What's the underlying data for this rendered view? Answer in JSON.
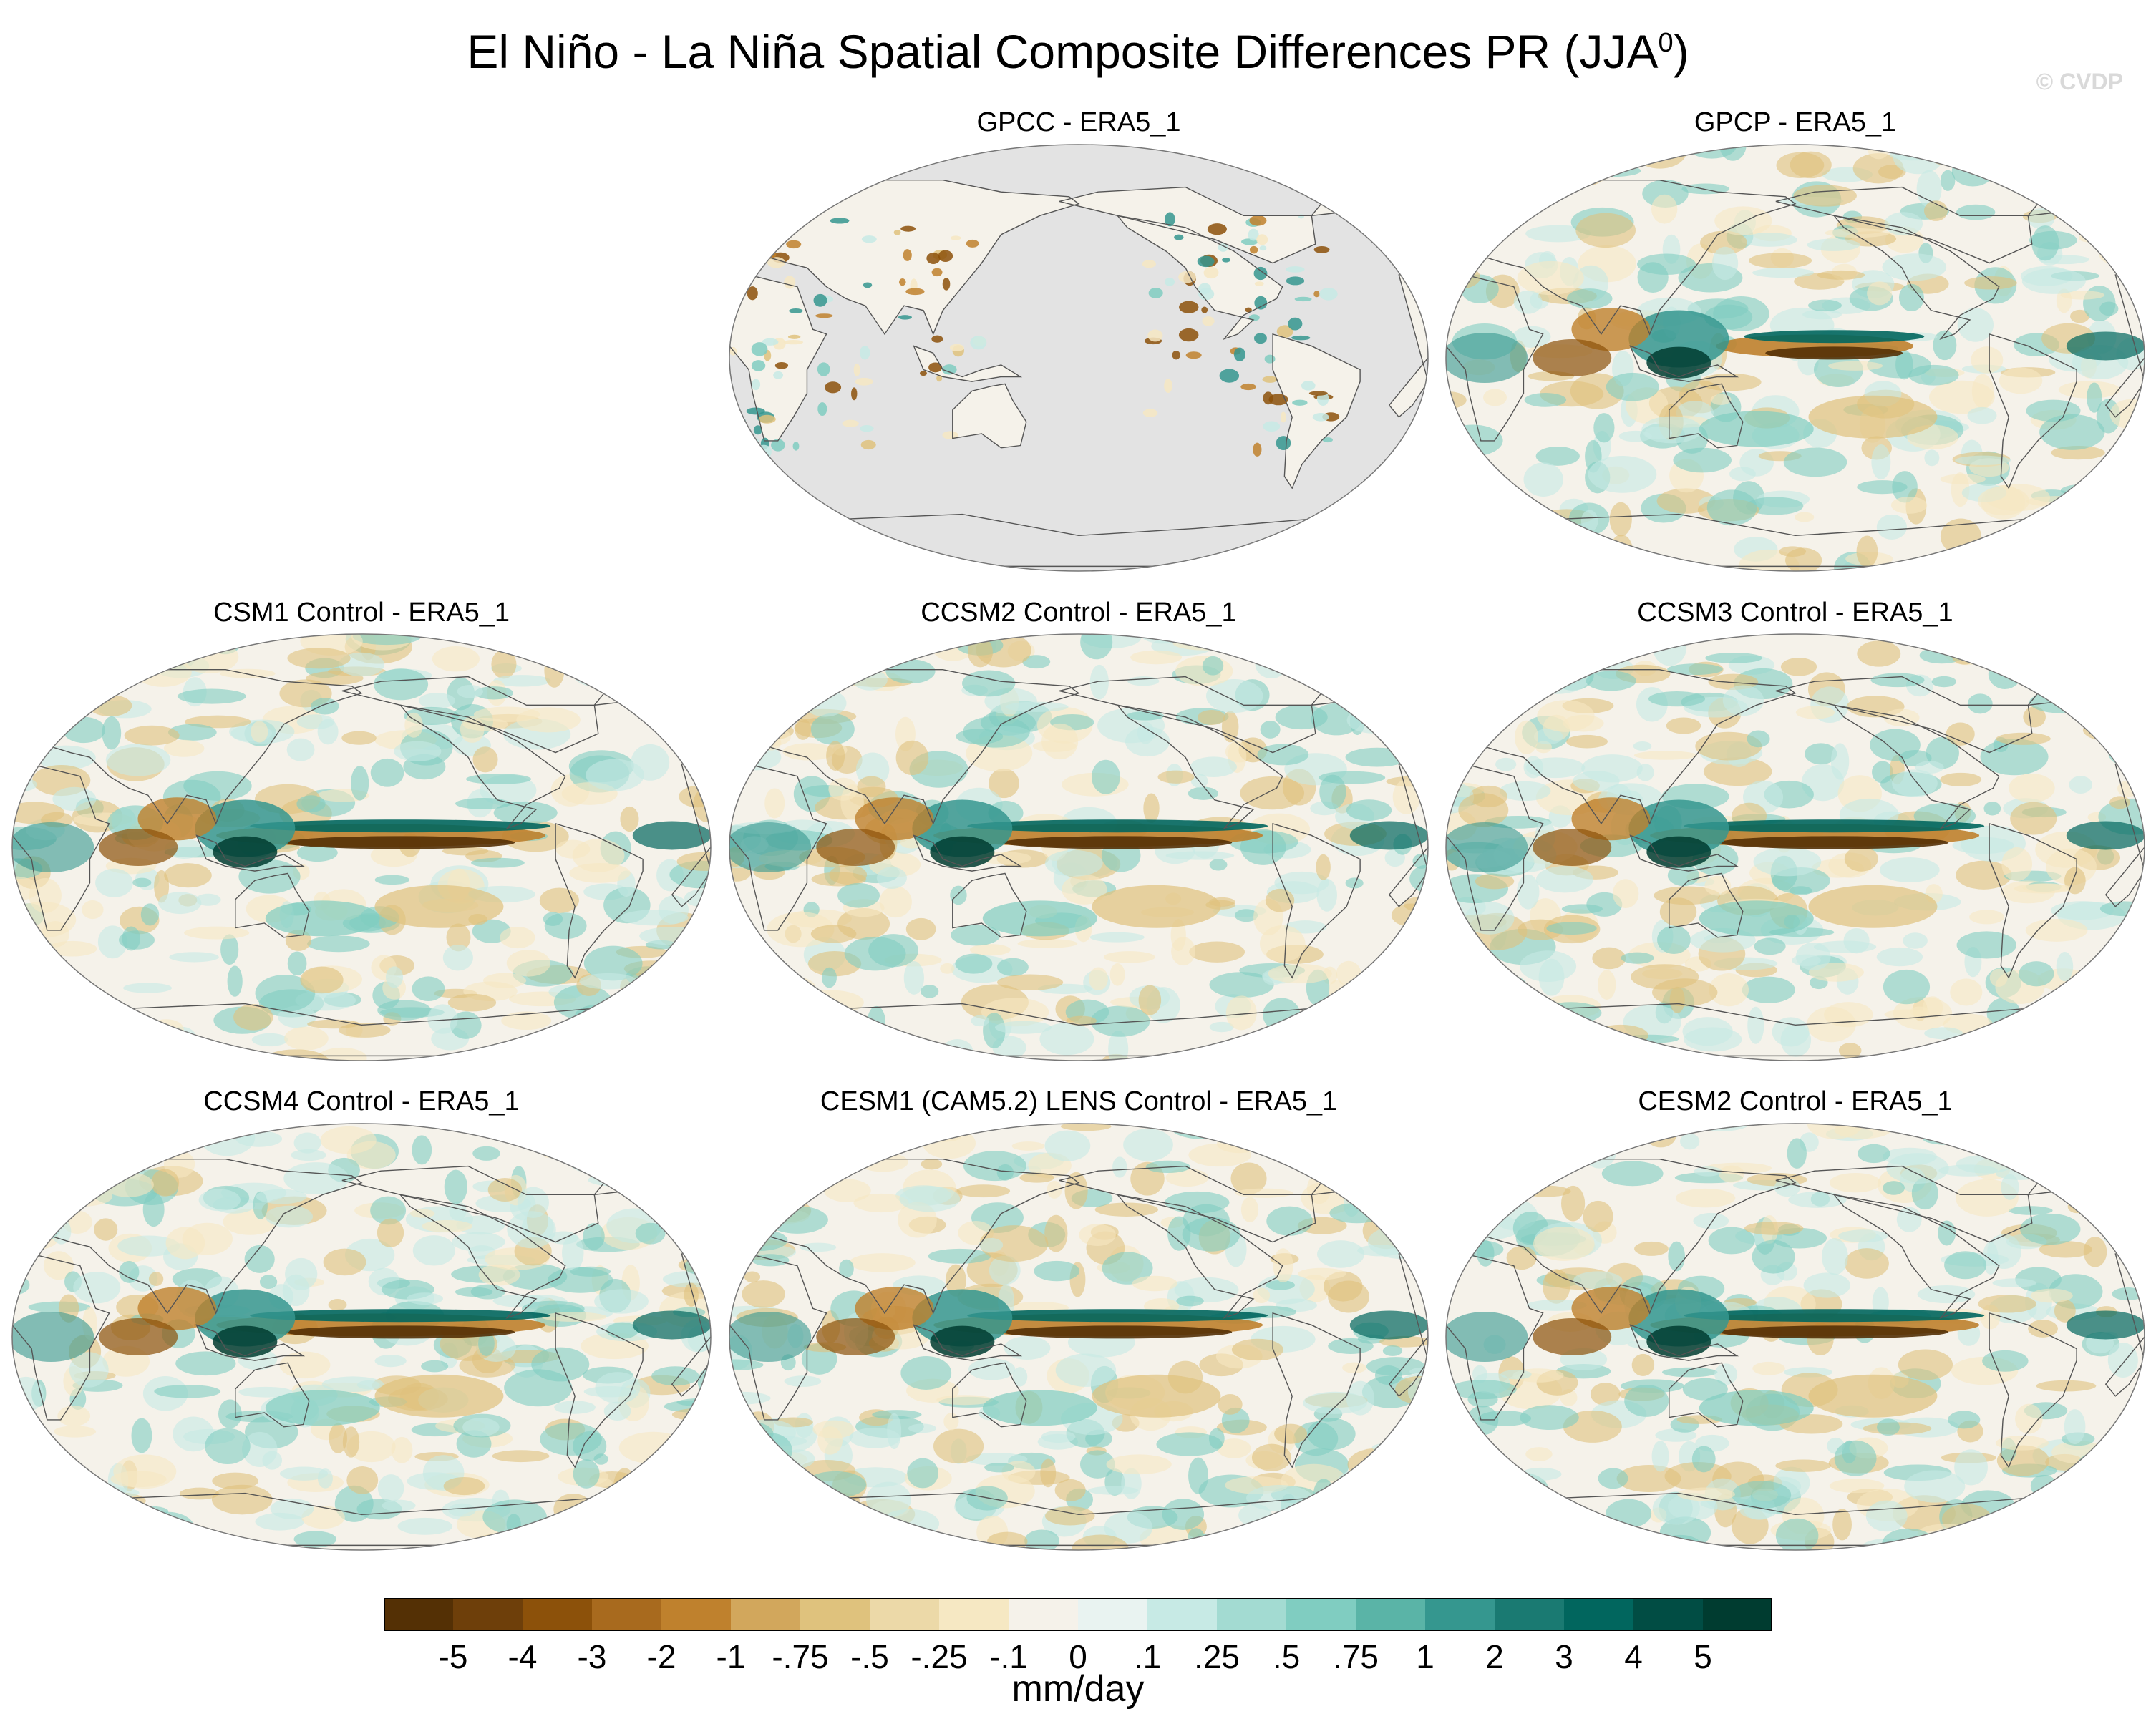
{
  "title_main": "El Niño - La Niña Spatial Composite Differences PR (JJA",
  "title_sup": "0",
  "title_close": ")",
  "watermark": "© CVDP",
  "panels": [
    {
      "name": "GPCC - ERA5_1",
      "style": "gpcc"
    },
    {
      "name": "GPCP - ERA5_1",
      "style": "obs"
    },
    {
      "name": "CSM1 Control - ERA5_1",
      "style": "model"
    },
    {
      "name": "CCSM2 Control - ERA5_1",
      "style": "model"
    },
    {
      "name": "CCSM3 Control - ERA5_1",
      "style": "model"
    },
    {
      "name": "CCSM4 Control - ERA5_1",
      "style": "model"
    },
    {
      "name": "CESM1 (CAM5.2) LENS Control - ERA5_1",
      "style": "model"
    },
    {
      "name": "CESM2 Control - ERA5_1",
      "style": "model"
    }
  ],
  "colorbar": {
    "labels": [
      "-5",
      "-4",
      "-3",
      "-2",
      "-1",
      "-.75",
      "-.5",
      "-.25",
      "-.1",
      "0",
      ".1",
      ".25",
      ".5",
      ".75",
      "1",
      "2",
      "3",
      "4",
      "5"
    ],
    "colors": [
      "#543005",
      "#6e3f0a",
      "#8c510a",
      "#a86a1e",
      "#bf812d",
      "#d2a75c",
      "#dfc27d",
      "#ecd9a8",
      "#f6e8c3",
      "#f5f2ea",
      "#e9f3f1",
      "#c7eae5",
      "#a3dbd2",
      "#80cdc1",
      "#5ab4a7",
      "#35978f",
      "#1a7a72",
      "#01665e",
      "#014d44",
      "#003c30"
    ],
    "units": "mm/day"
  }
}
